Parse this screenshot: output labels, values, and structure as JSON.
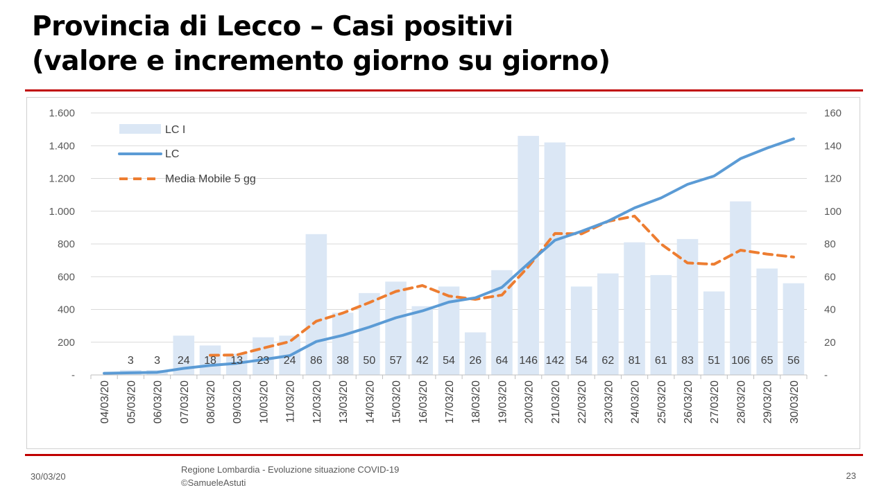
{
  "slide": {
    "title_line1": "Provincia di Lecco – Casi positivi",
    "title_line2": "(valore e incremento giorno su giorno)",
    "footer_date": "30/03/20",
    "footer_source_line1": "Regione Lombardia - Evoluzione situazione COVID-19",
    "footer_source_line2": "©SamueleAstuti",
    "page_number": "23"
  },
  "chart_data": {
    "type": "bar",
    "categories": [
      "04/03/20",
      "05/03/20",
      "06/03/20",
      "07/03/20",
      "08/03/20",
      "09/03/20",
      "10/03/20",
      "11/03/20",
      "12/03/20",
      "13/03/20",
      "14/03/20",
      "15/03/20",
      "16/03/20",
      "17/03/20",
      "18/03/20",
      "19/03/20",
      "20/03/20",
      "21/03/20",
      "22/03/20",
      "23/03/20",
      "24/03/20",
      "25/03/20",
      "26/03/20",
      "27/03/20",
      "28/03/20",
      "29/03/20",
      "30/03/20"
    ],
    "series": [
      {
        "name": "LC I",
        "type": "bar",
        "axis": "right",
        "color": "#dbe7f5",
        "values": [
          null,
          3,
          3,
          24,
          18,
          13,
          23,
          24,
          86,
          38,
          50,
          57,
          42,
          54,
          26,
          64,
          146,
          142,
          54,
          62,
          81,
          61,
          83,
          51,
          106,
          65,
          56
        ],
        "data_labels": [
          "",
          "3",
          "3",
          "24",
          "18",
          "13",
          "23",
          "24",
          "86",
          "38",
          "50",
          "57",
          "42",
          "54",
          "26",
          "64",
          "146",
          "142",
          "54",
          "62",
          "81",
          "61",
          "83",
          "51",
          "106",
          "65",
          "56"
        ]
      },
      {
        "name": "LC",
        "type": "line",
        "axis": "left",
        "color": "#5b9bd5",
        "values": [
          10,
          13,
          16,
          40,
          58,
          71,
          94,
          118,
          204,
          242,
          292,
          349,
          391,
          445,
          471,
          535,
          681,
          823,
          877,
          939,
          1020,
          1081,
          1164,
          1215,
          1321,
          1386,
          1442
        ]
      },
      {
        "name": "Media Mobile 5 gg",
        "type": "line",
        "dash": true,
        "axis": "left",
        "color": "#ed7d31",
        "values": [
          null,
          null,
          null,
          null,
          120,
          122,
          164,
          204,
          328,
          378,
          442,
          510,
          546,
          482,
          462,
          488,
          661,
          864,
          862,
          938,
          970,
          800,
          684,
          676,
          762,
          738,
          720
        ]
      }
    ],
    "y_left": {
      "ticks": [
        "-",
        "200",
        "400",
        "600",
        "800",
        "1.000",
        "1.200",
        "1.400",
        "1.600"
      ],
      "ylim": [
        0,
        1600
      ]
    },
    "y_right": {
      "ticks": [
        "-",
        "20",
        "40",
        "60",
        "80",
        "100",
        "120",
        "140",
        "160"
      ],
      "ylim": [
        0,
        160
      ]
    },
    "grid": true,
    "legend_position": "top-left"
  }
}
